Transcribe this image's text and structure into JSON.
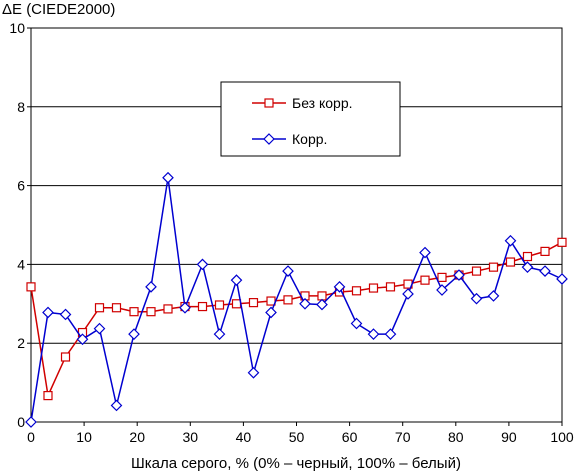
{
  "chart_data": {
    "type": "line",
    "ylabel": "ΔE (CIEDE2000)",
    "xlabel": "Шкала серого, % (0% – черный, 100% – белый)",
    "xlim": [
      0,
      100
    ],
    "ylim": [
      0,
      10
    ],
    "x_ticks": [
      "0",
      "10",
      "20",
      "30",
      "40",
      "50",
      "60",
      "70",
      "80",
      "90",
      "100"
    ],
    "y_ticks": [
      "0",
      "2",
      "4",
      "6",
      "8",
      "10"
    ],
    "grid": "horizontal",
    "legend_position": "upper-center",
    "x": [
      0,
      3.2,
      6.5,
      9.7,
      12.9,
      16.1,
      19.4,
      22.6,
      25.8,
      29.0,
      32.3,
      35.5,
      38.7,
      41.9,
      45.2,
      48.4,
      51.6,
      54.8,
      58.1,
      61.3,
      64.5,
      67.7,
      71.0,
      74.2,
      77.4,
      80.6,
      83.9,
      87.1,
      90.3,
      93.5,
      96.8,
      100
    ],
    "series": [
      {
        "name": "Без корр.",
        "color": "#d00000",
        "marker": "square",
        "values": [
          3.43,
          0.67,
          1.65,
          2.27,
          2.9,
          2.9,
          2.8,
          2.8,
          2.87,
          2.93,
          2.93,
          2.97,
          3.0,
          3.03,
          3.07,
          3.1,
          3.2,
          3.2,
          3.3,
          3.33,
          3.4,
          3.43,
          3.5,
          3.6,
          3.67,
          3.73,
          3.83,
          3.93,
          4.06,
          4.2,
          4.33,
          4.56
        ]
      },
      {
        "name": "Корр.",
        "color": "#0000d0",
        "marker": "diamond",
        "values": [
          0.0,
          2.78,
          2.73,
          2.1,
          2.37,
          0.42,
          2.23,
          3.43,
          6.2,
          2.9,
          4.0,
          2.23,
          3.6,
          1.25,
          2.78,
          3.83,
          3.0,
          2.98,
          3.43,
          2.5,
          2.23,
          2.23,
          3.25,
          4.3,
          3.35,
          3.73,
          3.13,
          3.2,
          4.6,
          3.93,
          3.83,
          3.63
        ]
      }
    ]
  }
}
